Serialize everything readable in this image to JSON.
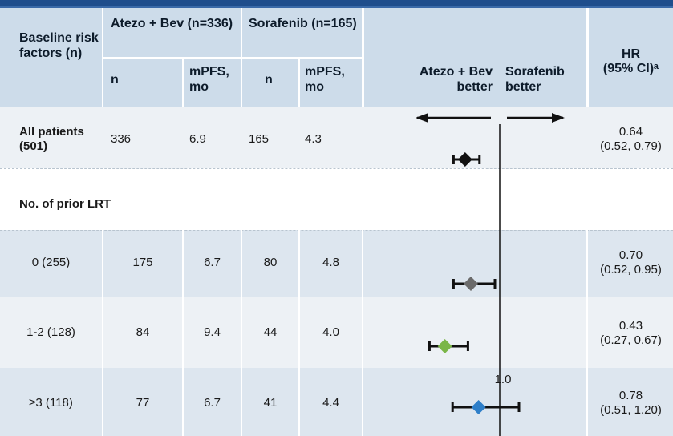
{
  "header": {
    "col_factor": "Baseline risk factors (n)",
    "col_atezo": "Atezo + Bev (n=336)",
    "col_sora": "Sorafenib (n=165)",
    "sub_n": "n",
    "sub_mpfs": "mPFS, mo",
    "arrow_left_label": "Atezo + Bev better",
    "arrow_right_label": "Sorafenib better",
    "col_hr_line1": "HR",
    "col_hr_line2": "(95% CI)ᵃ"
  },
  "rows": [
    {
      "label": "All patients (501)",
      "atezo_n": "336",
      "atezo_mpfs": "6.9",
      "sora_n": "165",
      "sora_mpfs": "4.3",
      "hr": "0.64",
      "ci": "(0.52, 0.79)"
    },
    {
      "section": "No. of prior LRT"
    },
    {
      "label": "0 (255)",
      "atezo_n": "175",
      "atezo_mpfs": "6.7",
      "sora_n": "80",
      "sora_mpfs": "4.8",
      "hr": "0.70",
      "ci": "(0.52, 0.95)"
    },
    {
      "label": "1-2 (128)",
      "atezo_n": "84",
      "atezo_mpfs": "9.4",
      "sora_n": "44",
      "sora_mpfs": "4.0",
      "hr": "0.43",
      "ci": "(0.27, 0.67)"
    },
    {
      "label": "≥3 (118)",
      "atezo_n": "77",
      "atezo_mpfs": "6.7",
      "sora_n": "41",
      "sora_mpfs": "4.4",
      "hr": "0.78",
      "ci": "(0.51, 1.20)"
    }
  ],
  "chart_data": {
    "type": "scatter",
    "reference_line": 1.0,
    "reference_label": "1.0",
    "xlim": [
      0.1,
      1.6
    ],
    "points": [
      {
        "label": "All patients (501)",
        "hr": 0.64,
        "ci_low": 0.52,
        "ci_high": 0.79,
        "color": "#111111"
      },
      {
        "label": "0 (255)",
        "hr": 0.7,
        "ci_low": 0.52,
        "ci_high": 0.95,
        "color": "#6b6b6b"
      },
      {
        "label": "1-2 (128)",
        "hr": 0.43,
        "ci_low": 0.27,
        "ci_high": 0.67,
        "color": "#7ab648"
      },
      {
        "label": "≥3 (118)",
        "hr": 0.78,
        "ci_low": 0.51,
        "ci_high": 1.2,
        "color": "#2e7fc9"
      }
    ]
  }
}
